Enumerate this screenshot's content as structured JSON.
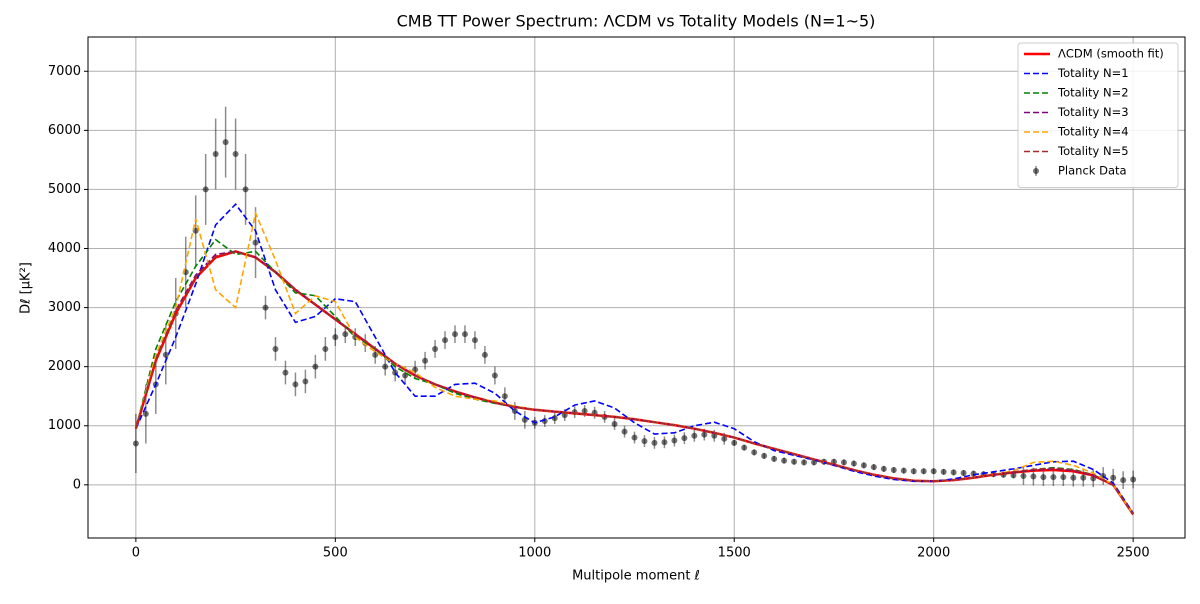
{
  "chart_data": {
    "type": "line",
    "title": "CMB TT Power Spectrum: ΛCDM vs Totality Models (N=1~5)",
    "x_label": "Multipole moment ℓ",
    "y_label": "Dℓ [μK²]",
    "xlim": [
      -120,
      2630
    ],
    "ylim": [
      -900,
      7580
    ],
    "xticks": [
      0,
      500,
      1000,
      1500,
      2000,
      2500
    ],
    "yticks": [
      0,
      1000,
      2000,
      3000,
      4000,
      5000,
      6000,
      7000
    ],
    "grid": true,
    "legend": "upper right",
    "x": [
      0,
      50,
      100,
      150,
      200,
      250,
      300,
      350,
      400,
      450,
      500,
      550,
      600,
      650,
      700,
      750,
      800,
      850,
      900,
      950,
      1000,
      1050,
      1100,
      1150,
      1200,
      1250,
      1300,
      1350,
      1400,
      1450,
      1500,
      1550,
      1600,
      1650,
      1700,
      1750,
      1800,
      1850,
      1900,
      1950,
      2000,
      2050,
      2100,
      2150,
      2200,
      2250,
      2300,
      2350,
      2400,
      2450,
      2500
    ],
    "series": [
      {
        "name": "ΛCDM (smooth fit)",
        "color": "red",
        "style": "solid",
        "values": [
          950,
          2100,
          2900,
          3500,
          3850,
          3950,
          3850,
          3600,
          3300,
          3050,
          2800,
          2550,
          2300,
          2050,
          1850,
          1700,
          1580,
          1480,
          1390,
          1320,
          1270,
          1240,
          1210,
          1180,
          1150,
          1110,
          1060,
          1010,
          950,
          880,
          800,
          700,
          610,
          520,
          430,
          340,
          250,
          170,
          110,
          70,
          60,
          80,
          120,
          170,
          210,
          240,
          250,
          230,
          160,
          0,
          -500
        ]
      },
      {
        "name": "Totality N=1",
        "color": "blue",
        "style": "dashed",
        "values": [
          950,
          1700,
          2500,
          3400,
          4400,
          4750,
          4300,
          3300,
          2750,
          2850,
          3150,
          3100,
          2500,
          1900,
          1500,
          1500,
          1700,
          1720,
          1550,
          1250,
          1050,
          1150,
          1350,
          1420,
          1300,
          1050,
          860,
          880,
          1000,
          1060,
          950,
          730,
          580,
          500,
          420,
          330,
          230,
          150,
          90,
          60,
          60,
          100,
          170,
          220,
          270,
          330,
          390,
          400,
          260,
          30,
          -480
        ]
      },
      {
        "name": "Totality N=2",
        "color": "green",
        "style": "dashed",
        "values": [
          950,
          2300,
          3100,
          3700,
          4150,
          3900,
          3950,
          3600,
          3250,
          3200,
          2850,
          2500,
          2300,
          2000,
          1800,
          1700,
          1550,
          1450,
          1380,
          1320,
          1270,
          1240,
          1210,
          1180,
          1150,
          1110,
          1060,
          1010,
          950,
          880,
          800,
          700,
          610,
          520,
          430,
          340,
          250,
          170,
          110,
          70,
          60,
          80,
          120,
          170,
          210,
          260,
          290,
          260,
          170,
          0,
          -500
        ]
      },
      {
        "name": "Totality N=3",
        "color": "purple",
        "style": "dashed",
        "values": [
          950,
          2150,
          2950,
          3550,
          3900,
          3950,
          3850,
          3600,
          3300,
          3050,
          2800,
          2550,
          2300,
          2050,
          1850,
          1700,
          1580,
          1480,
          1390,
          1320,
          1270,
          1240,
          1210,
          1180,
          1150,
          1110,
          1060,
          1010,
          950,
          880,
          800,
          700,
          610,
          520,
          430,
          340,
          250,
          170,
          110,
          70,
          60,
          80,
          120,
          170,
          210,
          250,
          270,
          240,
          160,
          0,
          -500
        ]
      },
      {
        "name": "Totality N=4",
        "color": "orange",
        "style": "dashed",
        "values": [
          950,
          2200,
          3000,
          4500,
          3300,
          3000,
          4600,
          3800,
          2900,
          3200,
          3100,
          2500,
          2250,
          2050,
          1900,
          1650,
          1500,
          1450,
          1420,
          1330,
          1270,
          1240,
          1210,
          1180,
          1150,
          1110,
          1060,
          1010,
          950,
          880,
          800,
          700,
          610,
          520,
          430,
          340,
          250,
          170,
          110,
          70,
          60,
          80,
          120,
          170,
          240,
          380,
          400,
          330,
          200,
          0,
          -500
        ]
      },
      {
        "name": "Totality N=5",
        "color": "brown",
        "style": "dashed",
        "values": [
          950,
          2120,
          2920,
          3520,
          3870,
          3950,
          3850,
          3600,
          3300,
          3050,
          2800,
          2550,
          2300,
          2050,
          1850,
          1700,
          1580,
          1480,
          1390,
          1320,
          1270,
          1240,
          1210,
          1180,
          1150,
          1110,
          1060,
          1010,
          950,
          880,
          800,
          700,
          610,
          520,
          430,
          340,
          250,
          170,
          110,
          70,
          60,
          80,
          120,
          170,
          220,
          260,
          280,
          250,
          170,
          0,
          -500
        ]
      },
      {
        "name": "Planck Data",
        "color": "black",
        "style": "points",
        "x": [
          0,
          25,
          50,
          75,
          100,
          125,
          150,
          175,
          200,
          225,
          250,
          275,
          300,
          325,
          350,
          375,
          400,
          425,
          450,
          475,
          500,
          525,
          550,
          575,
          600,
          625,
          650,
          675,
          700,
          725,
          750,
          775,
          800,
          825,
          850,
          875,
          900,
          925,
          950,
          975,
          1000,
          1025,
          1050,
          1075,
          1100,
          1125,
          1150,
          1175,
          1200,
          1225,
          1250,
          1275,
          1300,
          1325,
          1350,
          1375,
          1400,
          1425,
          1450,
          1475,
          1500,
          1525,
          1550,
          1575,
          1600,
          1625,
          1650,
          1675,
          1700,
          1725,
          1750,
          1775,
          1800,
          1825,
          1850,
          1875,
          1900,
          1925,
          1950,
          1975,
          2000,
          2025,
          2050,
          2075,
          2100,
          2125,
          2150,
          2175,
          2200,
          2225,
          2250,
          2275,
          2300,
          2325,
          2350,
          2375,
          2400,
          2425,
          2450,
          2475,
          2500
        ],
        "values": [
          700,
          1200,
          1700,
          2200,
          2900,
          3600,
          4300,
          5000,
          5600,
          5800,
          5600,
          5000,
          4100,
          3000,
          2300,
          1900,
          1700,
          1750,
          2000,
          2300,
          2500,
          2550,
          2500,
          2400,
          2200,
          2000,
          1900,
          1850,
          1950,
          2100,
          2300,
          2450,
          2550,
          2550,
          2450,
          2200,
          1850,
          1500,
          1250,
          1100,
          1050,
          1080,
          1130,
          1180,
          1230,
          1250,
          1220,
          1150,
          1030,
          900,
          800,
          740,
          710,
          720,
          750,
          790,
          830,
          850,
          830,
          780,
          710,
          630,
          550,
          490,
          440,
          410,
          390,
          380,
          380,
          390,
          390,
          380,
          360,
          330,
          300,
          270,
          250,
          240,
          230,
          230,
          230,
          220,
          210,
          200,
          190,
          180,
          180,
          170,
          160,
          150,
          140,
          130,
          130,
          130,
          120,
          120,
          110,
          150,
          120,
          80,
          90
        ],
        "errors": [
          500,
          500,
          500,
          500,
          600,
          600,
          600,
          600,
          600,
          600,
          600,
          600,
          600,
          200,
          200,
          200,
          200,
          200,
          200,
          200,
          150,
          150,
          150,
          150,
          150,
          150,
          150,
          150,
          150,
          150,
          150,
          150,
          150,
          150,
          150,
          150,
          150,
          150,
          150,
          150,
          100,
          100,
          100,
          100,
          100,
          100,
          100,
          100,
          100,
          100,
          100,
          100,
          100,
          100,
          100,
          100,
          100,
          100,
          100,
          100,
          50,
          50,
          50,
          50,
          50,
          50,
          50,
          50,
          50,
          50,
          50,
          50,
          50,
          50,
          50,
          50,
          50,
          50,
          50,
          50,
          50,
          50,
          50,
          50,
          50,
          50,
          50,
          50,
          50,
          150,
          150,
          150,
          150,
          150,
          150,
          150,
          150,
          150,
          150,
          150,
          150
        ]
      }
    ]
  }
}
